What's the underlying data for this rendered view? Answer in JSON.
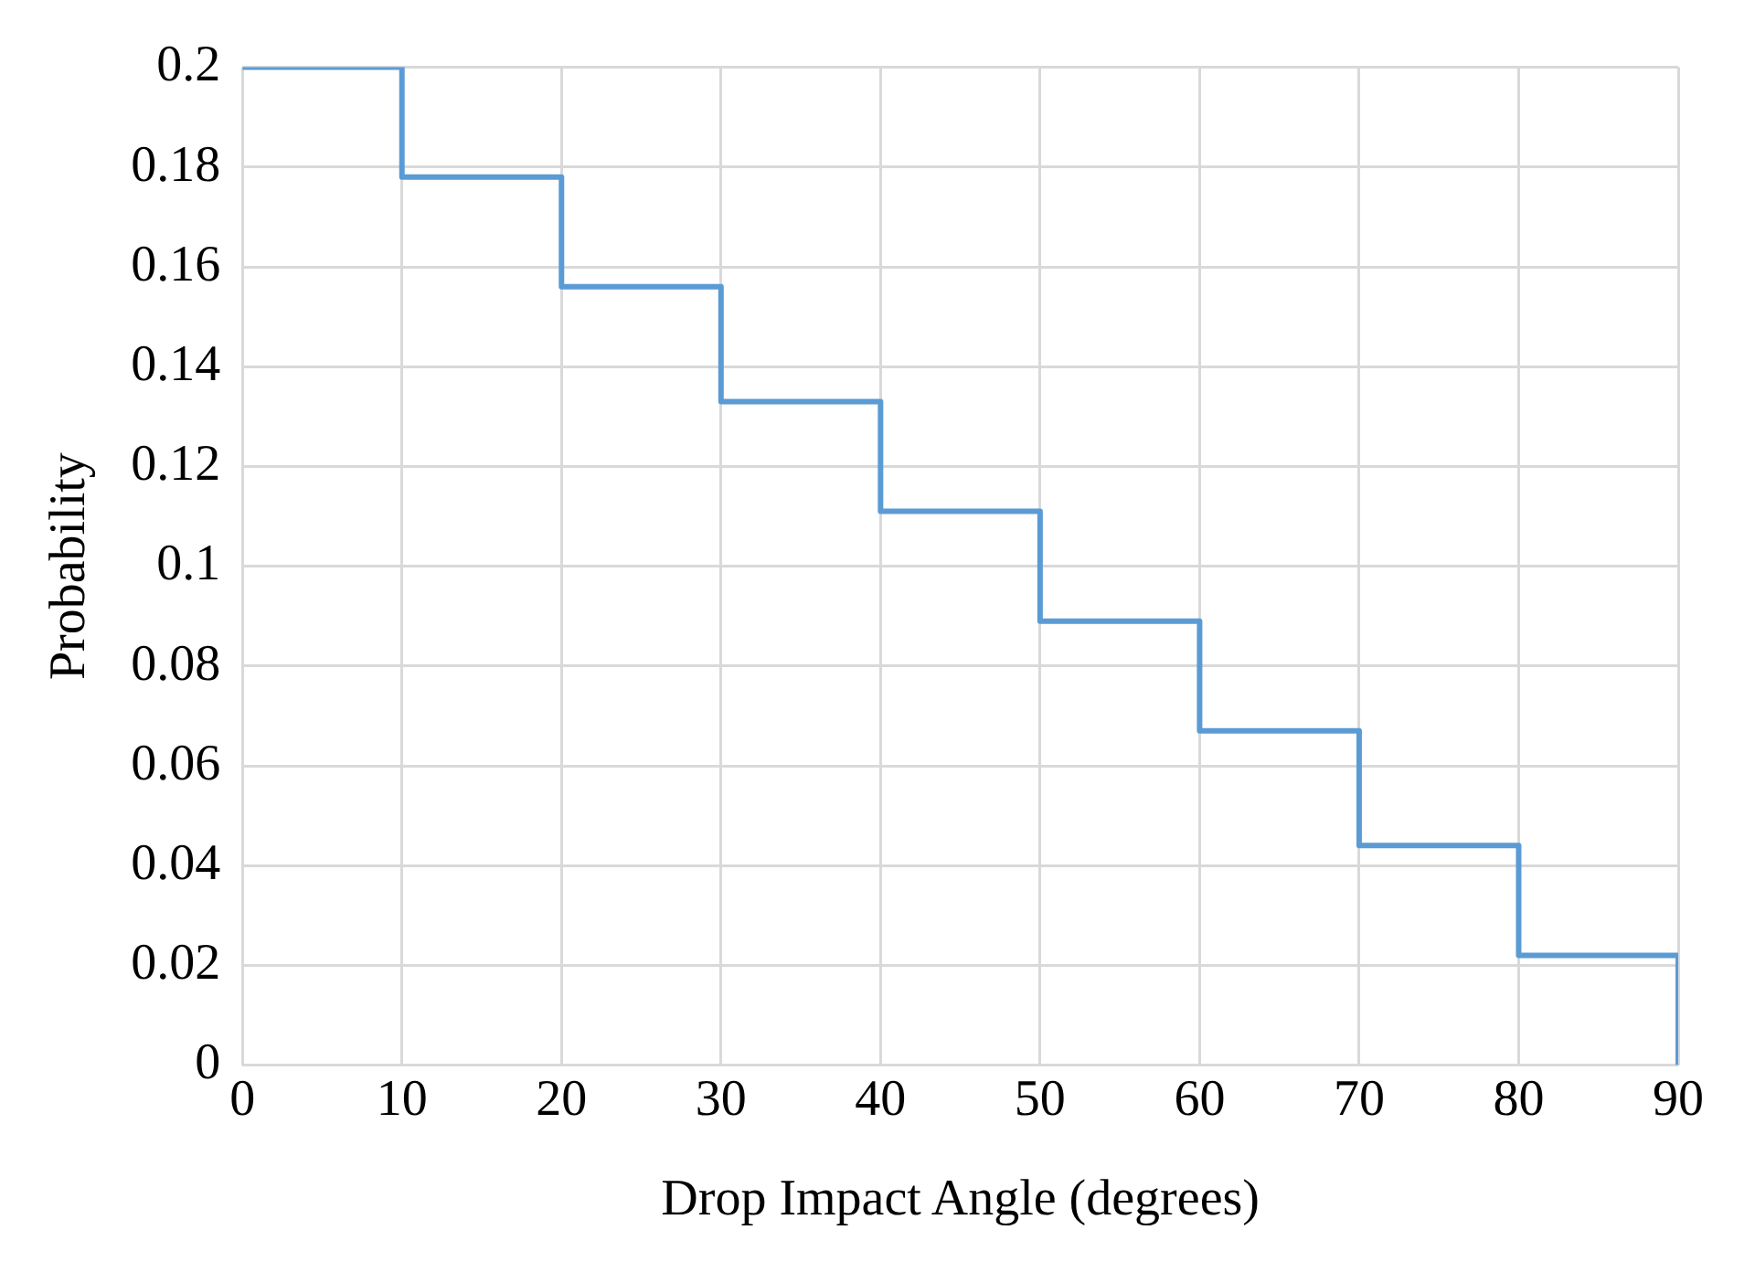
{
  "chart_data": {
    "type": "step",
    "xlabel": "Drop Impact Angle (degrees)",
    "ylabel": "Probability",
    "x": [
      0,
      10,
      20,
      30,
      40,
      50,
      60,
      70,
      80,
      90
    ],
    "series": [
      {
        "color": "#5b9bd5",
        "values": [
          0.2,
          0.178,
          0.156,
          0.133,
          0.111,
          0.089,
          0.067,
          0.044,
          0.022,
          0
        ]
      }
    ],
    "xlim": [
      0,
      90
    ],
    "xticks": [
      0,
      10,
      20,
      30,
      40,
      50,
      60,
      70,
      80,
      90
    ],
    "ylim": [
      0,
      0.2
    ],
    "yticks": [
      0,
      0.02,
      0.04,
      0.06,
      0.08,
      0.1,
      0.12,
      0.14,
      0.16,
      0.18,
      0.2
    ],
    "grid": true,
    "legend": false,
    "marker": "none"
  }
}
